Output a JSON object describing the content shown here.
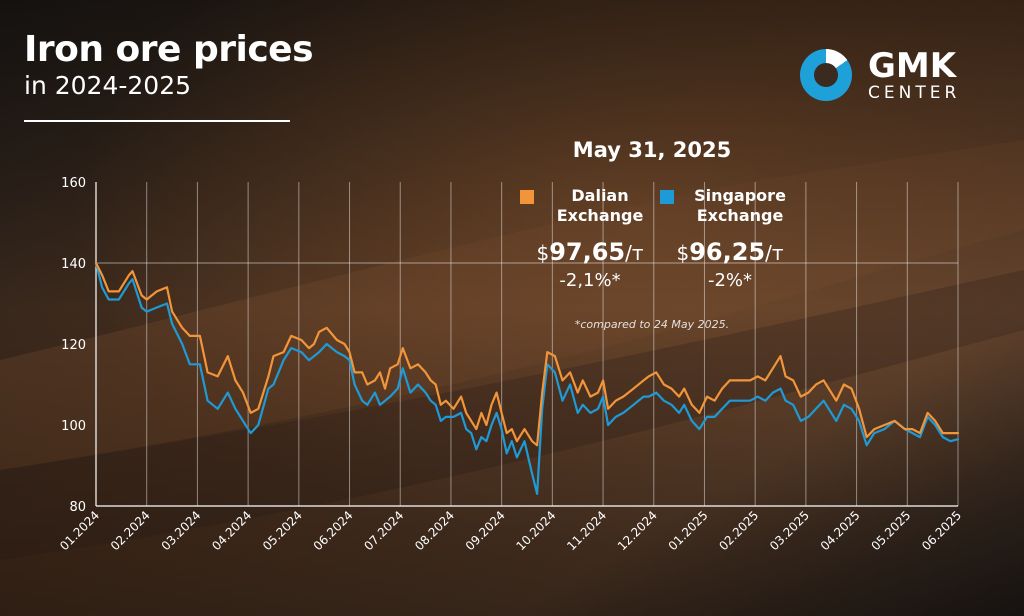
{
  "title": {
    "line1": "Iron ore prices",
    "line2": "in 2024-2025"
  },
  "brand": {
    "name": "GMK",
    "sub": "CENTER"
  },
  "info": {
    "date": "May 31, 2025",
    "dalian": {
      "label": "Dalian Exchange",
      "currency": "$",
      "value": "97,65",
      "unit": "/т",
      "change": "-2,1%*"
    },
    "singapore": {
      "label": "Singapore Exchange",
      "currency": "$",
      "value": "96,25",
      "unit": "/т",
      "change": "-2%*"
    },
    "footnote": "*compared to 24 May 2025."
  },
  "colors": {
    "dalian": "#f2953a",
    "singapore": "#1e9ad6",
    "axis": "#ffffff"
  },
  "chart_data": {
    "type": "line",
    "ylim": [
      80,
      160
    ],
    "yticks": [
      80,
      100,
      120,
      140,
      160
    ],
    "xlim": [
      0,
      17
    ],
    "xticks": [
      "01.2024",
      "02.2024",
      "03.2024",
      "04.2024",
      "05.2024",
      "06.2024",
      "07.2024",
      "08.2024",
      "09.2024",
      "10.2024",
      "11.2024",
      "12.2024",
      "01.2025",
      "02.2025",
      "03.2025",
      "04.2025",
      "05.2025",
      "06.2025"
    ],
    "grid": "vertical",
    "series": [
      {
        "name": "Dalian Exchange",
        "points": [
          [
            0,
            140
          ],
          [
            0.12,
            137
          ],
          [
            0.25,
            133
          ],
          [
            0.45,
            133
          ],
          [
            0.65,
            137
          ],
          [
            0.72,
            138
          ],
          [
            0.9,
            132
          ],
          [
            1.0,
            131
          ],
          [
            1.2,
            133
          ],
          [
            1.4,
            134
          ],
          [
            1.5,
            128
          ],
          [
            1.7,
            124
          ],
          [
            1.85,
            122
          ],
          [
            2.05,
            122
          ],
          [
            2.2,
            113
          ],
          [
            2.4,
            112
          ],
          [
            2.6,
            117
          ],
          [
            2.75,
            111
          ],
          [
            2.9,
            108
          ],
          [
            3.05,
            103
          ],
          [
            3.2,
            104
          ],
          [
            3.4,
            112
          ],
          [
            3.5,
            117
          ],
          [
            3.7,
            118
          ],
          [
            3.85,
            122
          ],
          [
            4.05,
            121
          ],
          [
            4.2,
            119
          ],
          [
            4.3,
            120
          ],
          [
            4.4,
            123
          ],
          [
            4.55,
            124
          ],
          [
            4.75,
            121
          ],
          [
            4.9,
            120
          ],
          [
            5.0,
            118
          ],
          [
            5.1,
            113
          ],
          [
            5.25,
            113
          ],
          [
            5.35,
            110
          ],
          [
            5.5,
            111
          ],
          [
            5.6,
            113
          ],
          [
            5.7,
            109
          ],
          [
            5.8,
            114
          ],
          [
            5.95,
            115
          ],
          [
            6.05,
            119
          ],
          [
            6.2,
            114
          ],
          [
            6.35,
            115
          ],
          [
            6.5,
            113
          ],
          [
            6.6,
            111
          ],
          [
            6.7,
            110
          ],
          [
            6.8,
            105
          ],
          [
            6.9,
            106
          ],
          [
            7.05,
            104
          ],
          [
            7.2,
            107
          ],
          [
            7.3,
            103
          ],
          [
            7.4,
            101
          ],
          [
            7.5,
            99
          ],
          [
            7.6,
            103
          ],
          [
            7.7,
            100
          ],
          [
            7.8,
            105
          ],
          [
            7.9,
            108
          ],
          [
            8.0,
            103
          ],
          [
            8.1,
            98
          ],
          [
            8.2,
            99
          ],
          [
            8.3,
            96
          ],
          [
            8.45,
            99
          ],
          [
            8.6,
            96
          ],
          [
            8.7,
            95
          ],
          [
            8.8,
            108
          ],
          [
            8.9,
            118
          ],
          [
            9.05,
            117
          ],
          [
            9.2,
            111
          ],
          [
            9.35,
            113
          ],
          [
            9.5,
            108
          ],
          [
            9.6,
            111
          ],
          [
            9.75,
            107
          ],
          [
            9.9,
            108
          ],
          [
            10.0,
            111
          ],
          [
            10.1,
            104
          ],
          [
            10.25,
            106
          ],
          [
            10.4,
            107
          ],
          [
            10.6,
            109
          ],
          [
            10.8,
            111
          ],
          [
            10.9,
            112
          ],
          [
            11.05,
            113
          ],
          [
            11.2,
            110
          ],
          [
            11.35,
            109
          ],
          [
            11.5,
            107
          ],
          [
            11.6,
            109
          ],
          [
            11.75,
            105
          ],
          [
            11.9,
            103
          ],
          [
            12.05,
            107
          ],
          [
            12.2,
            106
          ],
          [
            12.35,
            109
          ],
          [
            12.5,
            111
          ],
          [
            12.7,
            111
          ],
          [
            12.9,
            111
          ],
          [
            13.05,
            112
          ],
          [
            13.2,
            111
          ],
          [
            13.35,
            114
          ],
          [
            13.5,
            117
          ],
          [
            13.6,
            112
          ],
          [
            13.75,
            111
          ],
          [
            13.9,
            107
          ],
          [
            14.05,
            108
          ],
          [
            14.2,
            110
          ],
          [
            14.35,
            111
          ],
          [
            14.45,
            109
          ],
          [
            14.6,
            106
          ],
          [
            14.75,
            110
          ],
          [
            14.9,
            109
          ],
          [
            15.05,
            104
          ],
          [
            15.2,
            97
          ],
          [
            15.35,
            99
          ],
          [
            15.55,
            100
          ],
          [
            15.75,
            101
          ],
          [
            15.95,
            99
          ],
          [
            16.1,
            99
          ],
          [
            16.25,
            98
          ],
          [
            16.4,
            103
          ],
          [
            16.55,
            101
          ],
          [
            16.7,
            98
          ],
          [
            16.85,
            98
          ],
          [
            17.0,
            98
          ]
        ]
      },
      {
        "name": "Singapore Exchange",
        "points": [
          [
            0,
            140
          ],
          [
            0.12,
            134
          ],
          [
            0.25,
            131
          ],
          [
            0.45,
            131
          ],
          [
            0.65,
            135
          ],
          [
            0.72,
            136
          ],
          [
            0.9,
            129
          ],
          [
            1.0,
            128
          ],
          [
            1.2,
            129
          ],
          [
            1.4,
            130
          ],
          [
            1.5,
            125
          ],
          [
            1.7,
            120
          ],
          [
            1.85,
            115
          ],
          [
            2.05,
            115
          ],
          [
            2.2,
            106
          ],
          [
            2.4,
            104
          ],
          [
            2.6,
            108
          ],
          [
            2.75,
            104
          ],
          [
            2.9,
            101
          ],
          [
            3.05,
            98
          ],
          [
            3.2,
            100
          ],
          [
            3.4,
            109
          ],
          [
            3.5,
            110
          ],
          [
            3.7,
            116
          ],
          [
            3.85,
            119
          ],
          [
            4.05,
            118
          ],
          [
            4.2,
            116
          ],
          [
            4.4,
            118
          ],
          [
            4.55,
            120
          ],
          [
            4.75,
            118
          ],
          [
            4.9,
            117
          ],
          [
            5.0,
            116
          ],
          [
            5.1,
            110
          ],
          [
            5.25,
            106
          ],
          [
            5.35,
            105
          ],
          [
            5.5,
            108
          ],
          [
            5.6,
            105
          ],
          [
            5.8,
            107
          ],
          [
            5.95,
            109
          ],
          [
            6.05,
            114
          ],
          [
            6.2,
            108
          ],
          [
            6.35,
            110
          ],
          [
            6.5,
            108
          ],
          [
            6.6,
            106
          ],
          [
            6.7,
            105
          ],
          [
            6.8,
            101
          ],
          [
            6.9,
            102
          ],
          [
            7.05,
            102
          ],
          [
            7.2,
            103
          ],
          [
            7.3,
            99
          ],
          [
            7.4,
            98
          ],
          [
            7.5,
            94
          ],
          [
            7.6,
            97
          ],
          [
            7.7,
            96
          ],
          [
            7.8,
            100
          ],
          [
            7.9,
            103
          ],
          [
            8.0,
            99
          ],
          [
            8.1,
            93
          ],
          [
            8.2,
            96
          ],
          [
            8.3,
            92
          ],
          [
            8.45,
            96
          ],
          [
            8.6,
            88
          ],
          [
            8.7,
            83
          ],
          [
            8.8,
            104
          ],
          [
            8.9,
            115
          ],
          [
            9.05,
            113
          ],
          [
            9.2,
            106
          ],
          [
            9.35,
            110
          ],
          [
            9.5,
            103
          ],
          [
            9.6,
            105
          ],
          [
            9.75,
            103
          ],
          [
            9.9,
            104
          ],
          [
            10.0,
            107
          ],
          [
            10.1,
            100
          ],
          [
            10.25,
            102
          ],
          [
            10.4,
            103
          ],
          [
            10.6,
            105
          ],
          [
            10.8,
            107
          ],
          [
            10.9,
            107
          ],
          [
            11.05,
            108
          ],
          [
            11.2,
            106
          ],
          [
            11.35,
            105
          ],
          [
            11.5,
            103
          ],
          [
            11.6,
            105
          ],
          [
            11.75,
            101
          ],
          [
            11.9,
            99
          ],
          [
            12.05,
            102
          ],
          [
            12.2,
            102
          ],
          [
            12.35,
            104
          ],
          [
            12.5,
            106
          ],
          [
            12.7,
            106
          ],
          [
            12.9,
            106
          ],
          [
            13.05,
            107
          ],
          [
            13.2,
            106
          ],
          [
            13.35,
            108
          ],
          [
            13.5,
            109
          ],
          [
            13.6,
            106
          ],
          [
            13.75,
            105
          ],
          [
            13.9,
            101
          ],
          [
            14.05,
            102
          ],
          [
            14.2,
            104
          ],
          [
            14.35,
            106
          ],
          [
            14.45,
            104
          ],
          [
            14.6,
            101
          ],
          [
            14.75,
            105
          ],
          [
            14.9,
            104
          ],
          [
            15.05,
            101
          ],
          [
            15.2,
            95
          ],
          [
            15.35,
            98
          ],
          [
            15.55,
            99
          ],
          [
            15.75,
            101
          ],
          [
            15.95,
            99
          ],
          [
            16.1,
            98
          ],
          [
            16.25,
            97
          ],
          [
            16.4,
            102
          ],
          [
            16.55,
            100
          ],
          [
            16.7,
            97
          ],
          [
            16.85,
            96
          ],
          [
            17.0,
            96.5
          ]
        ]
      }
    ]
  }
}
